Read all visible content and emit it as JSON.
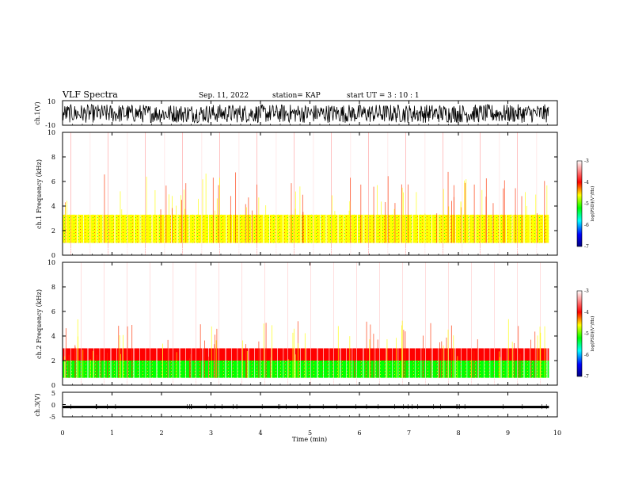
{
  "header": {
    "title": "VLF Spectra",
    "date": "Sep. 11, 2022",
    "station": "station= KAP",
    "start": "start  UT  =   3 : 10 : 1"
  },
  "colors": {
    "colormap": [
      "#000080",
      "#0000ff",
      "#00ffff",
      "#00ff00",
      "#ffff00",
      "#ff0000",
      "#ffffff"
    ],
    "trace": "#000000",
    "frame": "#000000"
  },
  "chart_data": [
    {
      "type": "line",
      "name": "ch.1 waveform",
      "ylabel": "ch.1(V)",
      "ylim": [
        -10,
        10
      ],
      "yticklabels": [
        "10",
        "-10"
      ],
      "xlim": [
        0,
        10
      ],
      "data_end_min": 9.83,
      "description_values": "rapid oscillating waveform roughly between -10 and 8 V"
    },
    {
      "type": "heatmap",
      "name": "ch.1 spectrogram",
      "ylabel": "ch.1 Frequency (kHz)",
      "ylim": [
        0,
        10
      ],
      "yticks": [
        0,
        2,
        4,
        6,
        8,
        10
      ],
      "xlim": [
        0,
        10
      ],
      "data_end_min": 9.83,
      "bands_khz": [
        {
          "from": 0,
          "to": 1.0,
          "level": -3.6
        },
        {
          "from": 1.0,
          "to": 3.3,
          "level": -5.0
        },
        {
          "from": 3.3,
          "to": 4.8,
          "level": -3.9
        },
        {
          "from": 4.8,
          "to": 10,
          "level": -3.2
        }
      ],
      "colorbar": {
        "label": "log(PSD)(V²/Hz)",
        "range": [
          -7,
          -3
        ],
        "ticks": [
          "-3",
          "-4",
          "-5",
          "-6",
          "-7"
        ]
      }
    },
    {
      "type": "heatmap",
      "name": "ch.2 spectrogram",
      "ylabel": "ch.2 Frequency (kHz)",
      "ylim": [
        0,
        10
      ],
      "yticks": [
        0,
        2,
        4,
        6,
        8,
        10
      ],
      "xlim": [
        0,
        10
      ],
      "data_end_min": 9.83,
      "bands_khz": [
        {
          "from": 0,
          "to": 0.6,
          "level": -3.8
        },
        {
          "from": 0.6,
          "to": 2.0,
          "level": -5.4
        },
        {
          "from": 2.0,
          "to": 3.0,
          "level": -4.3
        },
        {
          "from": 3.0,
          "to": 10,
          "level": -3.5
        }
      ],
      "colorbar": {
        "label": "log(PSD)(V²/Hz)",
        "range": [
          -7,
          -3
        ],
        "ticks": [
          "-3",
          "-4",
          "-5",
          "-6",
          "-7"
        ]
      }
    },
    {
      "type": "line",
      "name": "ch.3 waveform",
      "ylabel": "ch.3(V)",
      "ylim": [
        -5,
        5
      ],
      "yticklabels": [
        "5",
        "0",
        "-5"
      ],
      "xlim": [
        0,
        10
      ],
      "data_end_min": 9.83,
      "level_range": [
        -1.5,
        -0.5
      ]
    }
  ],
  "xaxis": {
    "label": "Time  (min)",
    "ticks": [
      0,
      1,
      2,
      3,
      4,
      5,
      6,
      7,
      8,
      9,
      10
    ]
  }
}
